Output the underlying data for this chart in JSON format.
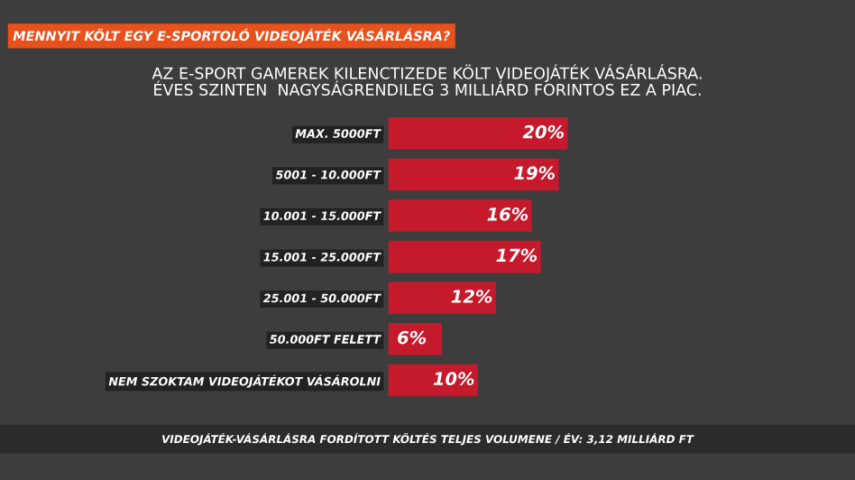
{
  "chart_data": {
    "type": "bar",
    "orientation": "horizontal",
    "title": "MENNYIT KÖLT EGY E-SPORTOLÓ VIDEOJÁTÉK VÁSÁRLÁSRA?",
    "subtitle": "AZ E-SPORT GAMEREK KILENCTIZEDE KÖLT VIDEOJÁTÉK VÁSÁRLÁSRA.\nÉVES SZINTEN  NAGYSÁGRENDILEG 3 MILLIÁRD FORINTOS EZ A PIAC.",
    "categories": [
      "MAX. 5000FT",
      "5001 - 10.000FT",
      "10.001 - 15.000FT",
      "15.001 - 25.000FT",
      "25.001 - 50.000FT",
      "50.000FT FELETT",
      "NEM SZOKTAM VIDEOJÁTÉKOT VÁSÁROLNI"
    ],
    "values": [
      20,
      19,
      16,
      17,
      12,
      6,
      10
    ],
    "value_labels": [
      "20%",
      "19%",
      "16%",
      "17%",
      "12%",
      "6%",
      "10%"
    ],
    "color": "#c41a2b",
    "xlim": [
      0,
      52
    ],
    "tick_labels": "y",
    "grid": false,
    "legend": false,
    "annotations": [
      "VIDEOJÁTÉK-VÁSÁRLÁSRA FORDÍTOTT KÖLTÉS TELJES VOLUMENE / ÉV: 3,12 MILLIÁRD FT"
    ]
  }
}
